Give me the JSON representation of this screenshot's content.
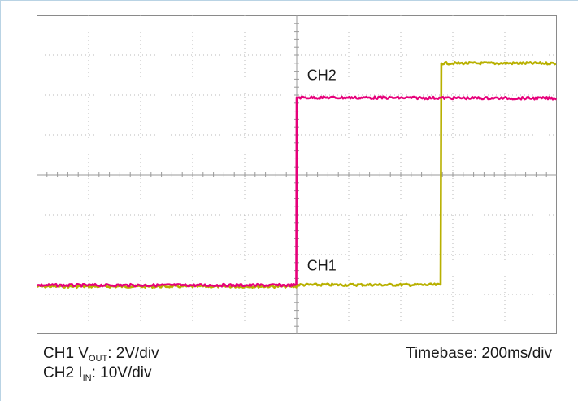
{
  "chart_data": {
    "type": "line",
    "title": "",
    "xlabel": "",
    "ylabel": "",
    "grid": true,
    "x_divisions": 10,
    "y_divisions": 8,
    "xlim": [
      0,
      10
    ],
    "ylim": [
      -4,
      4
    ],
    "series": [
      {
        "name": "CH1",
        "color": "#b8b000",
        "points": [
          [
            0,
            -2.8
          ],
          [
            5.0,
            -2.8
          ],
          [
            5.0,
            -2.76
          ],
          [
            7.78,
            -2.76
          ],
          [
            7.78,
            2.8
          ],
          [
            10,
            2.8
          ]
        ]
      },
      {
        "name": "CH2",
        "color": "#e6007a",
        "points": [
          [
            0,
            -2.77
          ],
          [
            5.0,
            -2.77
          ],
          [
            5.0,
            1.94
          ],
          [
            10,
            1.92
          ]
        ]
      }
    ],
    "annotations": [
      {
        "text": "CH2",
        "x": 5.2,
        "y": 2.38
      },
      {
        "text": "CH1",
        "x": 5.2,
        "y": -2.4
      }
    ]
  },
  "captions": {
    "ch1": {
      "prefix": "CH1 V",
      "sub": "OUT",
      "suffix": ": 2V/div"
    },
    "ch2": {
      "prefix": "CH2 I",
      "sub": "IN",
      "suffix": ": 10V/div"
    },
    "timebase": "Timebase: 200ms/div"
  }
}
